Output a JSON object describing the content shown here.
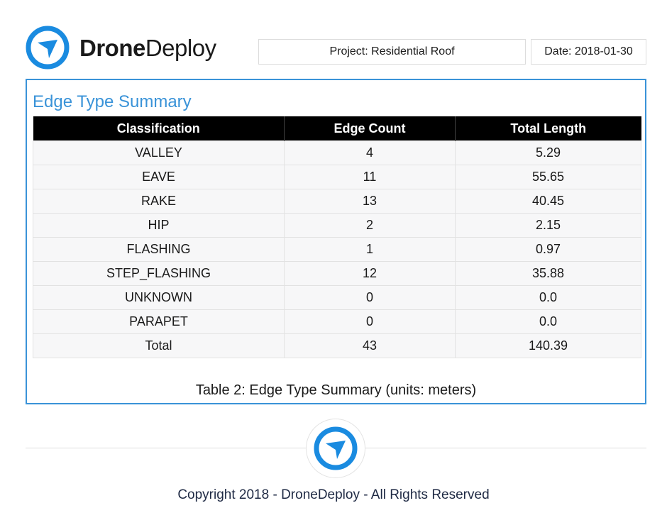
{
  "header": {
    "logo": {
      "brand_bold": "Drone",
      "brand_light": "Deploy",
      "icon": "drone-deploy-logo-icon"
    },
    "project_label": "Project: Residential Roof",
    "date_label": "Date: 2018-01-30"
  },
  "panel": {
    "title": "Edge Type Summary",
    "table": {
      "headers": [
        "Classification",
        "Edge Count",
        "Total Length"
      ],
      "rows": [
        [
          "VALLEY",
          "4",
          "5.29"
        ],
        [
          "EAVE",
          "11",
          "55.65"
        ],
        [
          "RAKE",
          "13",
          "40.45"
        ],
        [
          "HIP",
          "2",
          "2.15"
        ],
        [
          "FLASHING",
          "1",
          "0.97"
        ],
        [
          "STEP_FLASHING",
          "12",
          "35.88"
        ],
        [
          "UNKNOWN",
          "0",
          "0.0"
        ],
        [
          "PARAPET",
          "0",
          "0.0"
        ],
        [
          "Total",
          "43",
          "140.39"
        ]
      ]
    },
    "caption": "Table 2: Edge Type Summary (units: meters)"
  },
  "footer": {
    "badge_icon": "drone-deploy-logo-icon",
    "copyright": "Copyright 2018 - DroneDeploy - All Rights Reserved"
  },
  "colors": {
    "accent": "#3a93d8",
    "header_bg": "#000000",
    "row_bg": "#f7f7f8",
    "text": "#1a1a1a"
  }
}
